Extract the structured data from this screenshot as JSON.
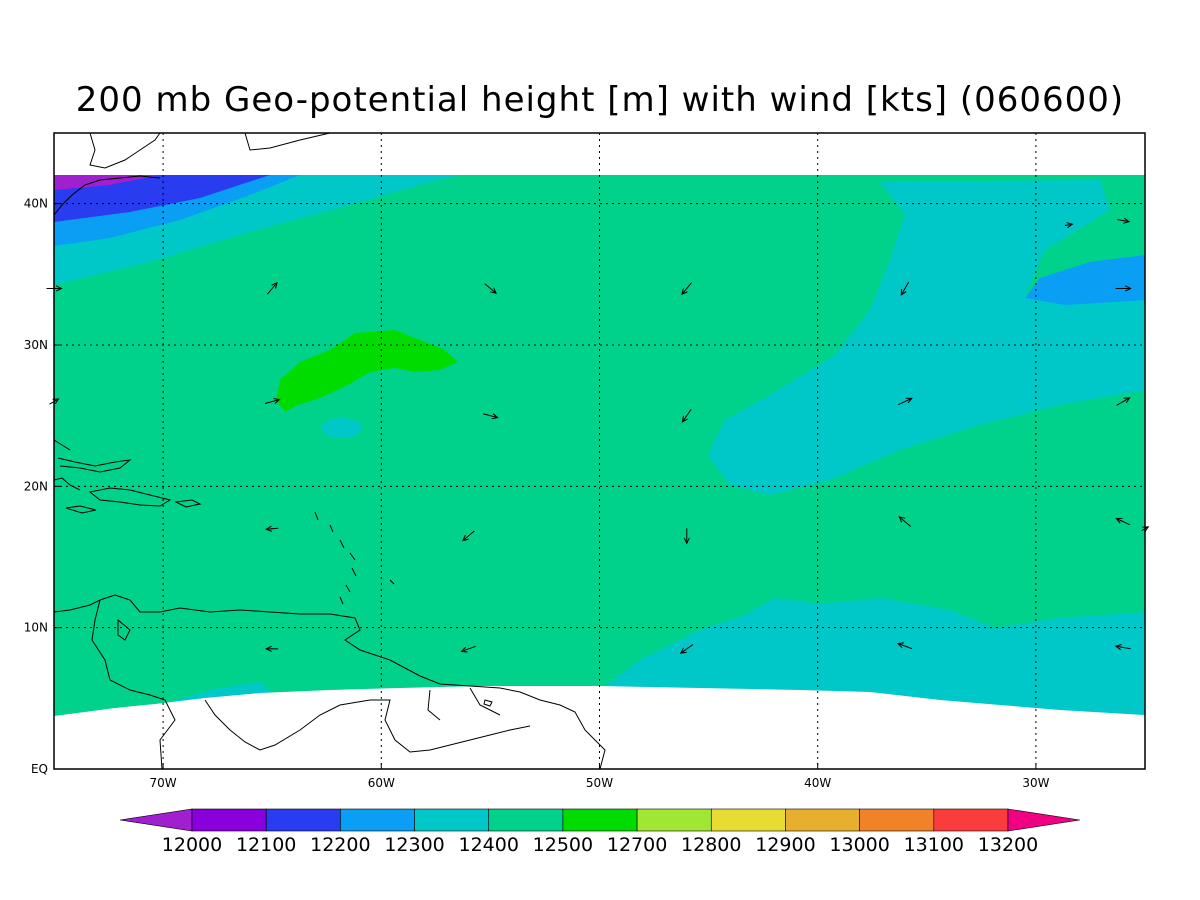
{
  "title": "200 mb Geo-potential height [m] with wind [kts] (060600)",
  "lon_range": [
    -75,
    -25
  ],
  "lat_range": [
    0,
    45
  ],
  "data_top_lat": 42,
  "lon_ticks": [
    {
      "lon": -70,
      "label": "70W"
    },
    {
      "lon": -60,
      "label": "60W"
    },
    {
      "lon": -50,
      "label": "50W"
    },
    {
      "lon": -40,
      "label": "40W"
    },
    {
      "lon": -30,
      "label": "30W"
    }
  ],
  "lat_ticks": [
    {
      "lat": 0,
      "label": "EQ"
    },
    {
      "lat": 10,
      "label": "10N"
    },
    {
      "lat": 20,
      "label": "20N"
    },
    {
      "lat": 30,
      "label": "30N"
    },
    {
      "lat": 40,
      "label": "40N"
    }
  ],
  "colorbar": {
    "colors": [
      "#a020d0",
      "#8a00dc",
      "#2a3cf0",
      "#0a9ef5",
      "#00c8c8",
      "#00d28c",
      "#00dc00",
      "#a0e632",
      "#e6dc32",
      "#e6af2d",
      "#f08228",
      "#fa3c3c",
      "#f00082"
    ],
    "labels": [
      "12000",
      "12100",
      "12200",
      "12300",
      "12400",
      "12500",
      "12700",
      "12800",
      "12900",
      "13000",
      "13100",
      "13200"
    ]
  },
  "height_colors": {
    "c12000": "#a020d0",
    "c12100": "#2a3cf0",
    "c12200": "#0a9ef5",
    "c12300": "#00c8c8",
    "c12400": "#00d28c",
    "c12500": "#00dc00"
  },
  "wind_vectors": [
    {
      "lon": -75,
      "lat": 34,
      "dir": 90,
      "len": 1.0
    },
    {
      "lon": -65,
      "lat": 34,
      "dir": 40,
      "len": 1.0
    },
    {
      "lon": -55,
      "lat": 34,
      "dir": 130,
      "len": 1.0
    },
    {
      "lon": -46,
      "lat": 34,
      "dir": 220,
      "len": 1.0
    },
    {
      "lon": -36,
      "lat": 34,
      "dir": 210,
      "len": 1.0
    },
    {
      "lon": -26,
      "lat": 34,
      "dir": 90,
      "len": 1.0
    },
    {
      "lon": -75,
      "lat": 26,
      "dir": 60,
      "len": 0.7
    },
    {
      "lon": -65,
      "lat": 26,
      "dir": 75,
      "len": 1.0
    },
    {
      "lon": -55,
      "lat": 25,
      "dir": 105,
      "len": 1.0
    },
    {
      "lon": -46,
      "lat": 25,
      "dir": 215,
      "len": 1.0
    },
    {
      "lon": -36,
      "lat": 26,
      "dir": 65,
      "len": 1.0
    },
    {
      "lon": -26,
      "lat": 26,
      "dir": 60,
      "len": 1.0
    },
    {
      "lon": -65,
      "lat": 17,
      "dir": 265,
      "len": 0.8
    },
    {
      "lon": -56,
      "lat": 16.5,
      "dir": 230,
      "len": 1.0
    },
    {
      "lon": -46,
      "lat": 16.5,
      "dir": 180,
      "len": 1.0
    },
    {
      "lon": -36,
      "lat": 17.5,
      "dir": 310,
      "len": 1.0
    },
    {
      "lon": -26,
      "lat": 17.5,
      "dir": 295,
      "len": 1.0
    },
    {
      "lon": -25,
      "lat": 17,
      "dir": 60,
      "len": 0.5
    },
    {
      "lon": -65,
      "lat": 8.5,
      "dir": 270,
      "len": 0.8
    },
    {
      "lon": -56,
      "lat": 8.5,
      "dir": 250,
      "len": 1.0
    },
    {
      "lon": -46,
      "lat": 8.5,
      "dir": 235,
      "len": 1.0
    },
    {
      "lon": -36,
      "lat": 8.7,
      "dir": 290,
      "len": 1.0
    },
    {
      "lon": -26,
      "lat": 8.6,
      "dir": 280,
      "len": 1.0
    },
    {
      "lon": -26,
      "lat": 38.8,
      "dir": 100,
      "len": 0.8
    },
    {
      "lon": -28.5,
      "lat": 38.5,
      "dir": 80,
      "len": 0.5
    }
  ]
}
